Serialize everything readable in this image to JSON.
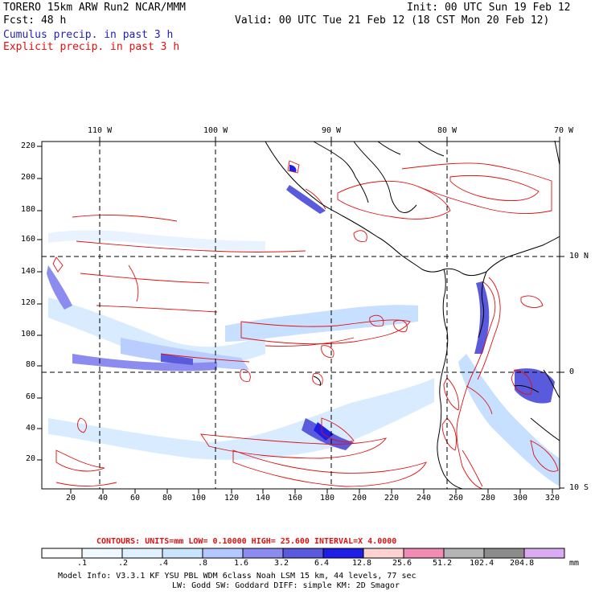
{
  "header": {
    "left_line1": "TORERO  15km ARW   Run2    NCAR/MMM",
    "left_line2": "Fcst:   48 h",
    "right_line1": "Init: 00 UTC Sun 19 Feb 12",
    "right_line2": "Valid: 00 UTC Tue 21 Feb 12 (18 CST Mon 20 Feb 12)",
    "legend_cumulus": "Cumulus precip. in past 3 h",
    "legend_explicit": "Explicit precip. in past 3 h",
    "cumulus_color": "#1f1fbf",
    "explicit_color": "#e01010"
  },
  "map": {
    "top_lon_labels": [
      "110 W",
      "100 W",
      "90 W",
      "80 W",
      "70 W"
    ],
    "right_lat_labels": [
      "10 N",
      "0",
      "10 S"
    ],
    "left_y_ticks": [
      "220",
      "200",
      "180",
      "160",
      "140",
      "120",
      "100",
      "80",
      "60",
      "40",
      "20"
    ],
    "bottom_x_ticks": [
      "20",
      "40",
      "60",
      "80",
      "100",
      "120",
      "140",
      "160",
      "180",
      "200",
      "220",
      "240",
      "260",
      "280",
      "300",
      "320"
    ]
  },
  "contours_line": {
    "text": "CONTOURS:  UNITS=mm  LOW= 0.10000      HIGH=  25.600      INTERVAL=X  4.0000"
  },
  "colorbar": {
    "levels": [
      ".1",
      ".2",
      ".4",
      ".8",
      "1.6",
      "3.2",
      "6.4",
      "12.8",
      "25.6",
      "51.2",
      "102.4",
      "204.8"
    ],
    "colors": [
      "#ffffff",
      "#f0f8ff",
      "#e0f0ff",
      "#c8e4ff",
      "#b4c8ff",
      "#8c8cf0",
      "#5a5adc",
      "#1e1ee6",
      "#ffd2d2",
      "#f08cb4",
      "#b4b4b4",
      "#8c8c8c",
      "#dcaaf5"
    ],
    "unit": "mm"
  },
  "footer": {
    "line1": "Model Info: V3.3.1   KF    YSU PBL   WDM 6class  Noah LSM  15 km,   44 levels,   77 sec",
    "line2": "LW: Godd SW: Goddard DIFF: simple KM: 2D Smagor"
  }
}
